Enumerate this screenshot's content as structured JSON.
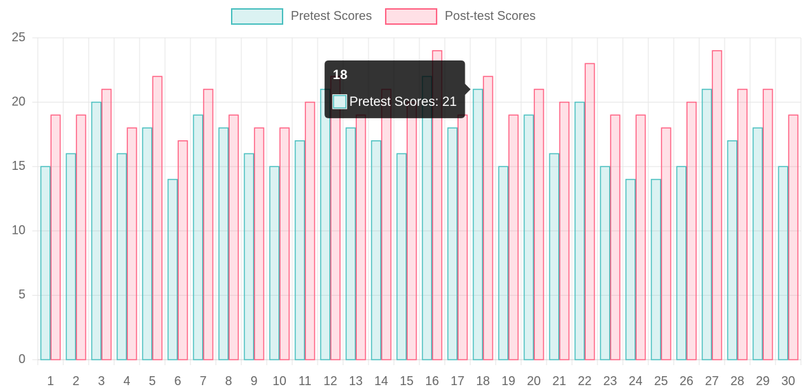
{
  "chart_data": {
    "type": "bar",
    "categories": [
      "1",
      "2",
      "3",
      "4",
      "5",
      "6",
      "7",
      "8",
      "9",
      "10",
      "11",
      "12",
      "13",
      "14",
      "15",
      "16",
      "17",
      "18",
      "19",
      "20",
      "21",
      "22",
      "23",
      "24",
      "25",
      "26",
      "27",
      "28",
      "29",
      "30"
    ],
    "series": [
      {
        "name": "Pretest Scores",
        "color": "rgb(75,192,192)",
        "fill": "rgba(75,192,192,0.2)",
        "values": [
          15,
          16,
          20,
          16,
          18,
          14,
          19,
          18,
          16,
          15,
          17,
          21,
          18,
          17,
          16,
          22,
          18,
          21,
          15,
          19,
          16,
          20,
          15,
          14,
          14,
          15,
          21,
          17,
          18,
          15
        ]
      },
      {
        "name": "Post-test Scores",
        "color": "rgb(255,99,132)",
        "fill": "rgba(255,99,132,0.2)",
        "values": [
          19,
          19,
          21,
          18,
          22,
          17,
          21,
          19,
          18,
          18,
          20,
          22,
          19,
          21,
          20,
          24,
          19,
          22,
          19,
          21,
          20,
          23,
          19,
          19,
          18,
          20,
          24,
          21,
          21,
          19
        ]
      }
    ],
    "ylim": [
      0,
      25
    ],
    "yticks": [
      0,
      5,
      10,
      15,
      20,
      25
    ],
    "grid": true,
    "legend": "top",
    "tooltip": {
      "title": "18",
      "label": "Pretest Scores: 21"
    }
  }
}
